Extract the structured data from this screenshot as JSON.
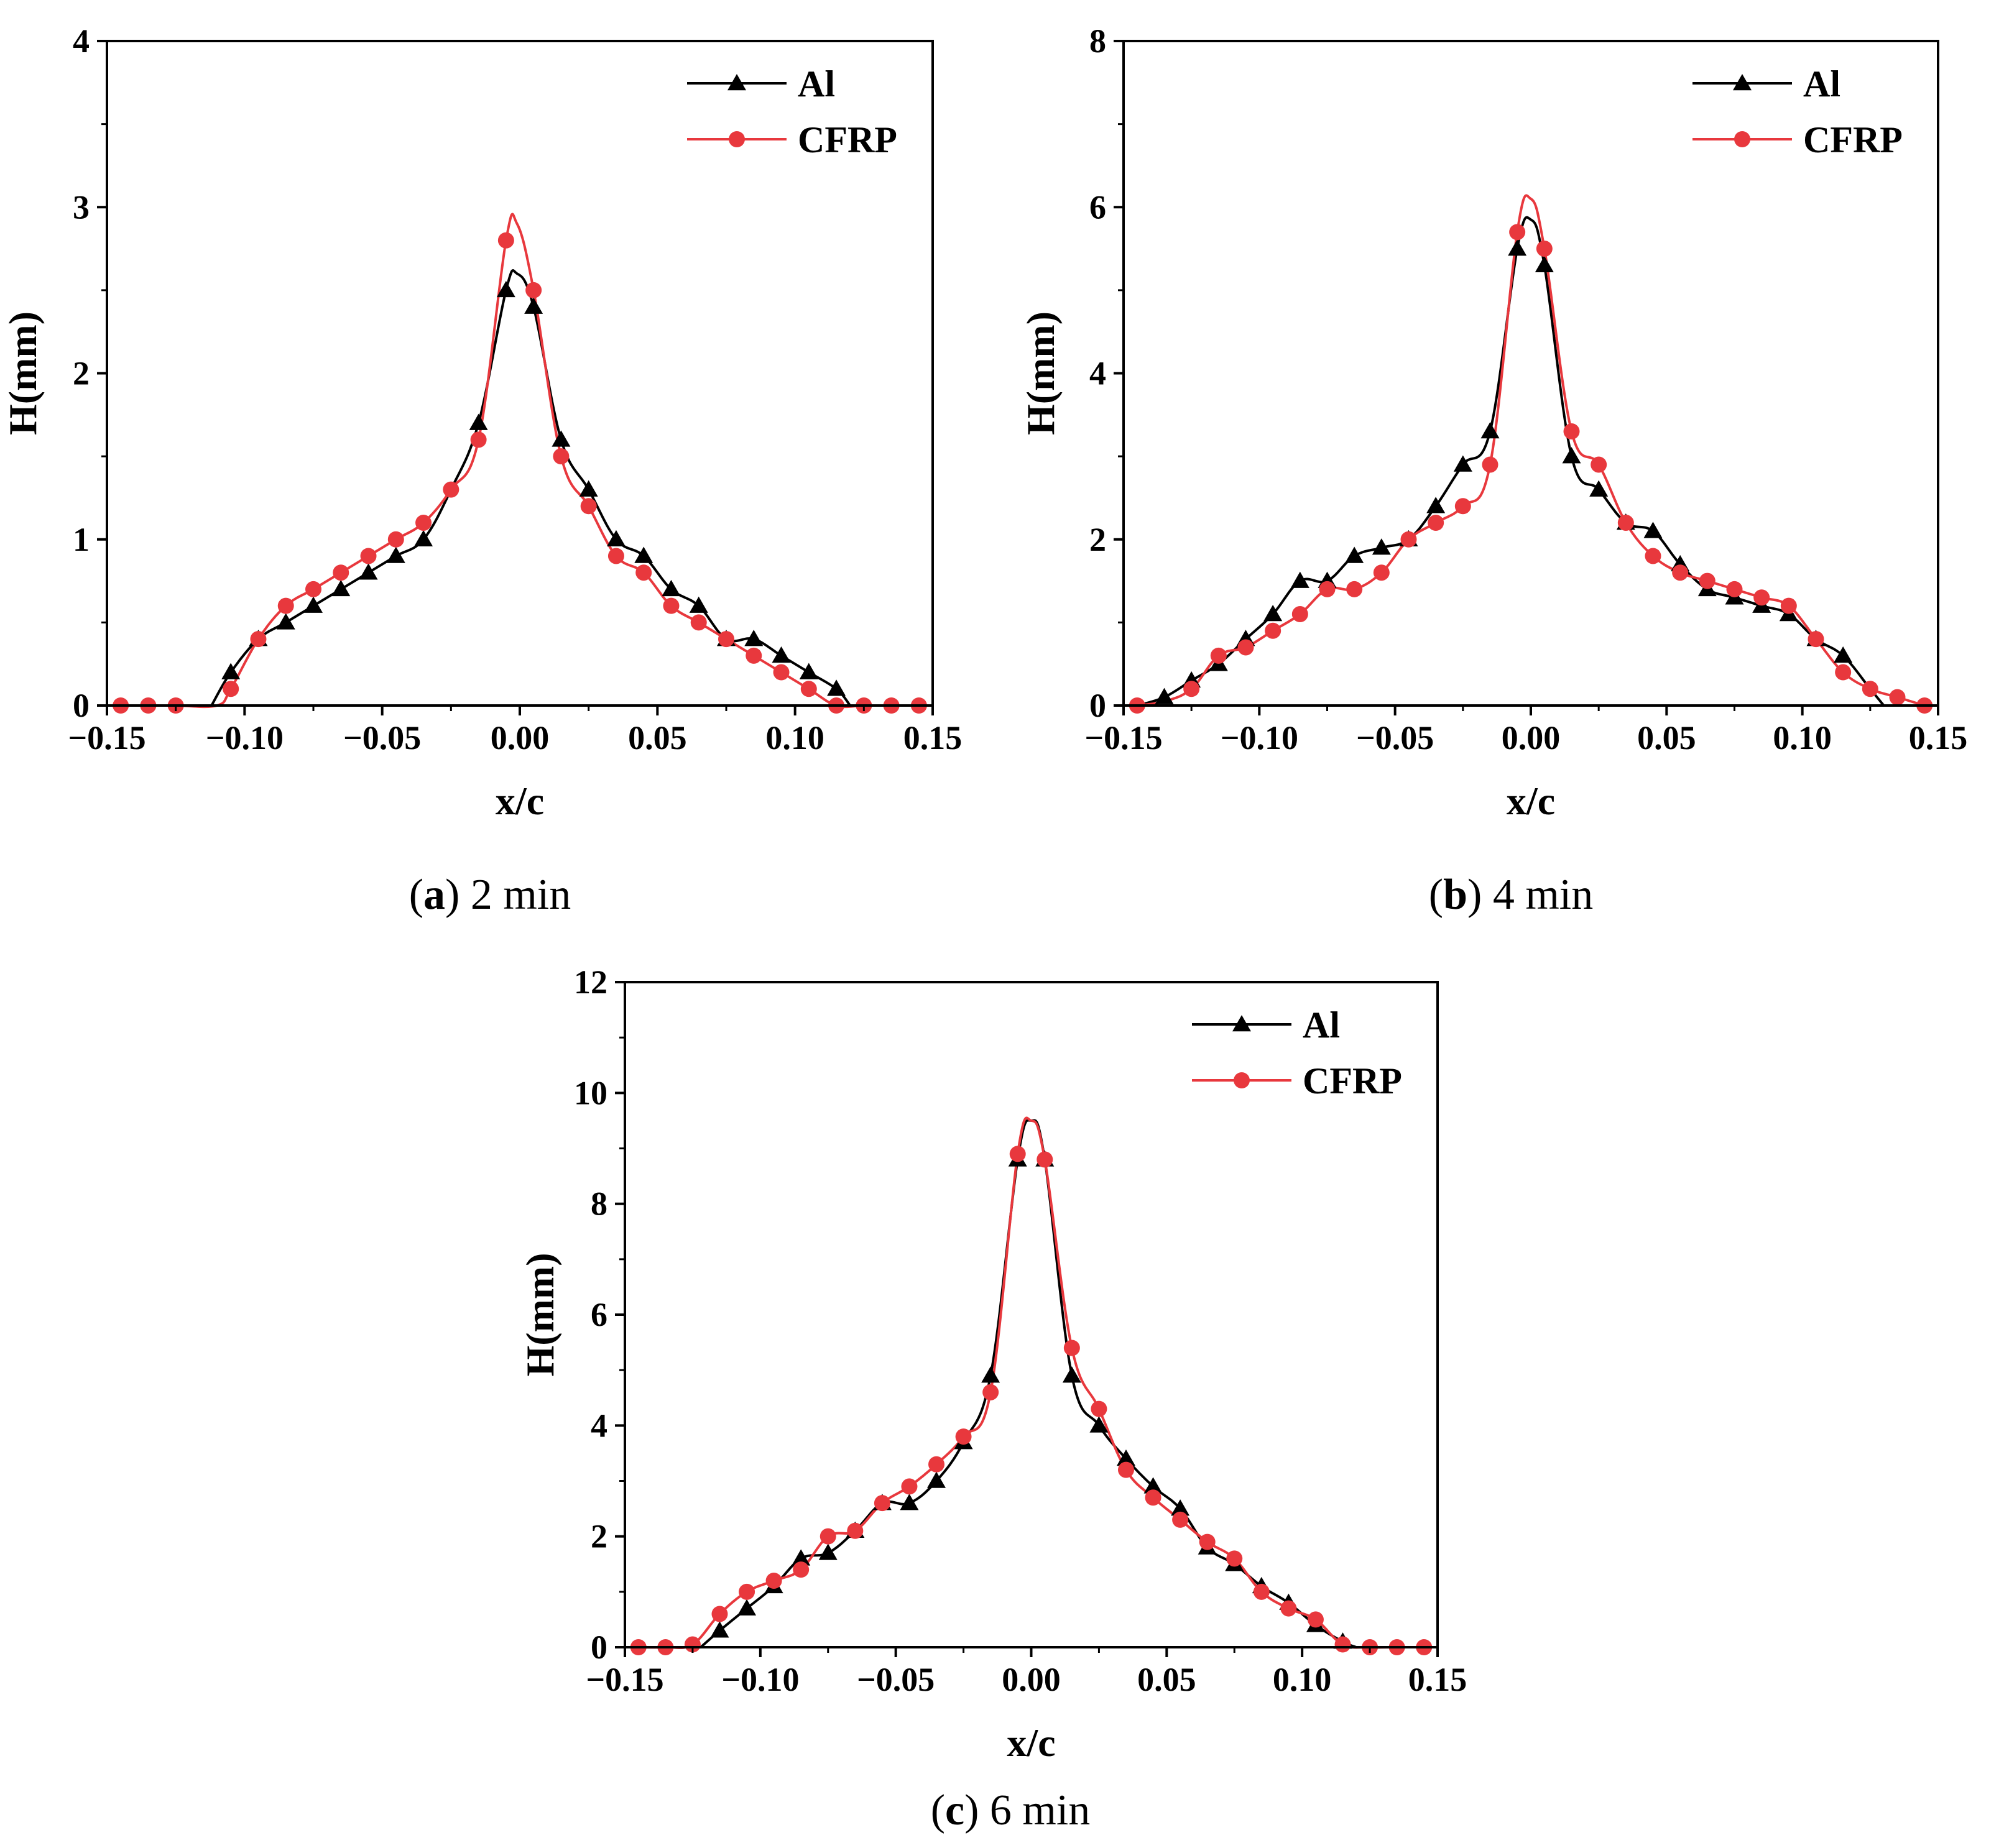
{
  "chart_data": [
    {
      "type": "line",
      "caption": {
        "letter": "a",
        "text": "2 min"
      },
      "xlabel": "x/c",
      "ylabel": "H(mm)",
      "xlim": [
        -0.15,
        0.15
      ],
      "ylim": [
        0,
        4
      ],
      "xticks": [
        -0.15,
        -0.1,
        -0.05,
        0.0,
        0.05,
        0.1,
        0.15
      ],
      "xtick_labels": [
        "−0.15",
        "−0.10",
        "−0.05",
        "0.00",
        "0.05",
        "0.10",
        "0.15"
      ],
      "yticks": [
        0,
        1,
        2,
        3,
        4
      ],
      "ytick_labels": [
        "0",
        "1",
        "2",
        "3",
        "4"
      ],
      "legend_position": "top-right",
      "series": [
        {
          "name": "Al",
          "color": "#000000",
          "marker": "triangle",
          "x": [
            -0.105,
            -0.095,
            -0.085,
            -0.075,
            -0.065,
            -0.055,
            -0.045,
            -0.035,
            -0.015,
            -0.005,
            0.005,
            0.015,
            0.025,
            0.035,
            0.045,
            0.055,
            0.065,
            0.075,
            0.085,
            0.095,
            0.105,
            0.115
          ],
          "y": [
            0.2,
            0.4,
            0.5,
            0.6,
            0.7,
            0.8,
            0.9,
            1.0,
            1.7,
            2.5,
            2.4,
            1.6,
            1.3,
            1.0,
            0.9,
            0.7,
            0.6,
            0.4,
            0.4,
            0.3,
            0.2,
            0.1
          ],
          "curve_x": [
            -0.112,
            -0.105,
            -0.095,
            -0.085,
            -0.075,
            -0.065,
            -0.055,
            -0.045,
            -0.035,
            -0.025,
            -0.015,
            -0.005,
            -0.001,
            0.005,
            0.015,
            0.025,
            0.035,
            0.045,
            0.055,
            0.065,
            0.075,
            0.085,
            0.095,
            0.105,
            0.115,
            0.12
          ],
          "curve_y": [
            0,
            0.2,
            0.4,
            0.5,
            0.6,
            0.7,
            0.8,
            0.9,
            1.0,
            1.3,
            1.7,
            2.5,
            2.6,
            2.4,
            1.6,
            1.3,
            1.0,
            0.9,
            0.7,
            0.6,
            0.4,
            0.4,
            0.3,
            0.2,
            0.1,
            0
          ]
        },
        {
          "name": "CFRP",
          "color": "#e8383d",
          "marker": "circle",
          "x": [
            -0.145,
            -0.135,
            -0.125,
            -0.105,
            -0.095,
            -0.085,
            -0.075,
            -0.065,
            -0.055,
            -0.045,
            -0.035,
            -0.025,
            -0.015,
            -0.005,
            0.005,
            0.015,
            0.025,
            0.035,
            0.045,
            0.055,
            0.065,
            0.075,
            0.085,
            0.095,
            0.105,
            0.115,
            0.125,
            0.135,
            0.145
          ],
          "y": [
            0,
            0,
            0,
            0.1,
            0.4,
            0.6,
            0.7,
            0.8,
            0.9,
            1.0,
            1.1,
            1.3,
            1.6,
            2.8,
            2.5,
            1.5,
            1.2,
            0.9,
            0.8,
            0.6,
            0.5,
            0.4,
            0.3,
            0.2,
            0.1,
            0,
            0,
            0,
            0
          ],
          "curve_x": [
            -0.145,
            -0.135,
            -0.125,
            -0.11,
            -0.105,
            -0.095,
            -0.085,
            -0.075,
            -0.065,
            -0.055,
            -0.045,
            -0.035,
            -0.025,
            -0.015,
            -0.005,
            -0.001,
            0.005,
            0.015,
            0.025,
            0.035,
            0.045,
            0.055,
            0.065,
            0.075,
            0.085,
            0.095,
            0.105,
            0.115,
            0.125,
            0.135,
            0.145
          ],
          "curve_y": [
            0,
            0,
            0,
            0,
            0.1,
            0.4,
            0.6,
            0.7,
            0.8,
            0.9,
            1.0,
            1.1,
            1.3,
            1.6,
            2.8,
            2.9,
            2.5,
            1.5,
            1.2,
            0.9,
            0.8,
            0.6,
            0.5,
            0.4,
            0.3,
            0.2,
            0.1,
            0,
            0,
            0,
            0
          ]
        }
      ]
    },
    {
      "type": "line",
      "caption": {
        "letter": "b",
        "text": "4 min"
      },
      "xlabel": "x/c",
      "ylabel": "H(mm)",
      "xlim": [
        -0.15,
        0.15
      ],
      "ylim": [
        0,
        8
      ],
      "xticks": [
        -0.15,
        -0.1,
        -0.05,
        0.0,
        0.05,
        0.1,
        0.15
      ],
      "xtick_labels": [
        "−0.15",
        "−0.10",
        "−0.05",
        "0.00",
        "0.05",
        "0.10",
        "0.15"
      ],
      "yticks": [
        0,
        2,
        4,
        6,
        8
      ],
      "ytick_labels": [
        "0",
        "2",
        "4",
        "6",
        "8"
      ],
      "legend_position": "top-right",
      "series": [
        {
          "name": "Al",
          "color": "#000000",
          "marker": "triangle",
          "x": [
            -0.135,
            -0.125,
            -0.115,
            -0.105,
            -0.095,
            -0.085,
            -0.075,
            -0.065,
            -0.055,
            -0.045,
            -0.035,
            -0.025,
            -0.015,
            -0.005,
            0.005,
            0.015,
            0.025,
            0.035,
            0.045,
            0.055,
            0.065,
            0.075,
            0.085,
            0.095,
            0.105,
            0.115
          ],
          "y": [
            0.1,
            0.3,
            0.5,
            0.8,
            1.1,
            1.5,
            1.5,
            1.8,
            1.9,
            2.0,
            2.4,
            2.9,
            3.3,
            5.5,
            5.3,
            3.0,
            2.6,
            2.2,
            2.1,
            1.7,
            1.4,
            1.3,
            1.2,
            1.1,
            0.8,
            0.6
          ],
          "curve_x": [
            -0.145,
            -0.135,
            -0.125,
            -0.115,
            -0.105,
            -0.095,
            -0.085,
            -0.075,
            -0.065,
            -0.055,
            -0.045,
            -0.035,
            -0.025,
            -0.015,
            -0.005,
            0.0,
            0.005,
            0.015,
            0.025,
            0.035,
            0.045,
            0.055,
            0.065,
            0.075,
            0.085,
            0.095,
            0.105,
            0.115,
            0.125,
            0.13
          ],
          "curve_y": [
            0,
            0.1,
            0.3,
            0.5,
            0.8,
            1.1,
            1.5,
            1.5,
            1.8,
            1.9,
            2.0,
            2.4,
            2.9,
            3.3,
            5.5,
            5.85,
            5.3,
            3.0,
            2.6,
            2.2,
            2.1,
            1.7,
            1.4,
            1.3,
            1.2,
            1.1,
            0.8,
            0.6,
            0.2,
            0
          ]
        },
        {
          "name": "CFRP",
          "color": "#e8383d",
          "marker": "circle",
          "x": [
            -0.145,
            -0.125,
            -0.115,
            -0.105,
            -0.095,
            -0.085,
            -0.075,
            -0.065,
            -0.055,
            -0.045,
            -0.035,
            -0.025,
            -0.015,
            -0.005,
            0.005,
            0.015,
            0.025,
            0.035,
            0.045,
            0.055,
            0.065,
            0.075,
            0.085,
            0.095,
            0.105,
            0.115,
            0.125,
            0.135,
            0.145
          ],
          "y": [
            0,
            0.2,
            0.6,
            0.7,
            0.9,
            1.1,
            1.4,
            1.4,
            1.6,
            2.0,
            2.2,
            2.4,
            2.9,
            5.7,
            5.5,
            3.3,
            2.9,
            2.2,
            1.8,
            1.6,
            1.5,
            1.4,
            1.3,
            1.2,
            0.8,
            0.4,
            0.2,
            0.1,
            0
          ],
          "curve_x": [
            -0.145,
            -0.135,
            -0.125,
            -0.115,
            -0.105,
            -0.095,
            -0.085,
            -0.075,
            -0.065,
            -0.055,
            -0.045,
            -0.035,
            -0.025,
            -0.015,
            -0.005,
            0.0,
            0.005,
            0.015,
            0.025,
            0.035,
            0.045,
            0.055,
            0.065,
            0.075,
            0.085,
            0.095,
            0.105,
            0.115,
            0.125,
            0.135,
            0.145
          ],
          "curve_y": [
            0,
            0.05,
            0.2,
            0.6,
            0.7,
            0.9,
            1.1,
            1.4,
            1.4,
            1.6,
            2.0,
            2.2,
            2.4,
            2.9,
            5.7,
            6.1,
            5.5,
            3.3,
            2.9,
            2.2,
            1.8,
            1.6,
            1.5,
            1.4,
            1.3,
            1.2,
            0.8,
            0.4,
            0.2,
            0.1,
            0
          ]
        }
      ]
    },
    {
      "type": "line",
      "caption": {
        "letter": "c",
        "text": "6 min"
      },
      "xlabel": "x/c",
      "ylabel": "H(mm)",
      "xlim": [
        -0.15,
        0.15
      ],
      "ylim": [
        0,
        12
      ],
      "xticks": [
        -0.15,
        -0.1,
        -0.05,
        0.0,
        0.05,
        0.1,
        0.15
      ],
      "xtick_labels": [
        "−0.15",
        "−0.10",
        "−0.05",
        "0.00",
        "0.05",
        "0.10",
        "0.15"
      ],
      "yticks": [
        0,
        2,
        4,
        6,
        8,
        10,
        12
      ],
      "ytick_labels": [
        "0",
        "2",
        "4",
        "6",
        "8",
        "10",
        "12"
      ],
      "legend_position": "top-right",
      "series": [
        {
          "name": "Al",
          "color": "#000000",
          "marker": "triangle",
          "x": [
            -0.115,
            -0.105,
            -0.095,
            -0.085,
            -0.075,
            -0.065,
            -0.055,
            -0.045,
            -0.035,
            -0.025,
            -0.015,
            -0.005,
            0.005,
            0.015,
            0.025,
            0.035,
            0.045,
            0.055,
            0.065,
            0.075,
            0.085,
            0.095,
            0.105,
            0.115
          ],
          "y": [
            0.3,
            0.7,
            1.1,
            1.6,
            1.7,
            2.1,
            2.6,
            2.6,
            3.0,
            3.7,
            4.9,
            8.8,
            8.8,
            4.9,
            4.0,
            3.4,
            2.9,
            2.5,
            1.8,
            1.5,
            1.1,
            0.8,
            0.4,
            0.1
          ],
          "curve_x": [
            -0.122,
            -0.115,
            -0.105,
            -0.095,
            -0.085,
            -0.075,
            -0.065,
            -0.055,
            -0.045,
            -0.035,
            -0.025,
            -0.015,
            -0.005,
            0.0,
            0.005,
            0.015,
            0.025,
            0.035,
            0.045,
            0.055,
            0.065,
            0.075,
            0.085,
            0.095,
            0.105,
            0.115,
            0.12
          ],
          "curve_y": [
            0,
            0.3,
            0.7,
            1.1,
            1.6,
            1.7,
            2.1,
            2.6,
            2.6,
            3.0,
            3.7,
            4.9,
            8.8,
            9.5,
            8.8,
            4.9,
            4.0,
            3.4,
            2.9,
            2.5,
            1.8,
            1.5,
            1.1,
            0.8,
            0.4,
            0.1,
            0
          ]
        },
        {
          "name": "CFRP",
          "color": "#e8383d",
          "marker": "circle",
          "x": [
            -0.145,
            -0.135,
            -0.125,
            -0.115,
            -0.105,
            -0.095,
            -0.085,
            -0.075,
            -0.065,
            -0.055,
            -0.045,
            -0.035,
            -0.025,
            -0.015,
            -0.005,
            0.005,
            0.015,
            0.025,
            0.035,
            0.045,
            0.055,
            0.065,
            0.075,
            0.085,
            0.095,
            0.105,
            0.115,
            0.125,
            0.135,
            0.145
          ],
          "y": [
            0,
            0,
            0.05,
            0.6,
            1.0,
            1.2,
            1.4,
            2.0,
            2.1,
            2.6,
            2.9,
            3.3,
            3.8,
            4.6,
            8.9,
            8.8,
            5.4,
            4.3,
            3.2,
            2.7,
            2.3,
            1.9,
            1.6,
            1.0,
            0.7,
            0.5,
            0.05,
            0,
            0,
            0
          ],
          "curve_x": [
            -0.145,
            -0.135,
            -0.125,
            -0.115,
            -0.105,
            -0.095,
            -0.085,
            -0.075,
            -0.065,
            -0.055,
            -0.045,
            -0.035,
            -0.025,
            -0.015,
            -0.005,
            0.0,
            0.005,
            0.015,
            0.025,
            0.035,
            0.045,
            0.055,
            0.065,
            0.075,
            0.085,
            0.095,
            0.105,
            0.115,
            0.125,
            0.135,
            0.145
          ],
          "curve_y": [
            0,
            0,
            0.05,
            0.6,
            1.0,
            1.2,
            1.4,
            2.0,
            2.1,
            2.6,
            2.9,
            3.3,
            3.8,
            4.6,
            8.9,
            9.5,
            8.8,
            5.4,
            4.3,
            3.2,
            2.7,
            2.3,
            1.9,
            1.6,
            1.0,
            0.7,
            0.5,
            0.05,
            0,
            0,
            0
          ]
        }
      ]
    }
  ]
}
